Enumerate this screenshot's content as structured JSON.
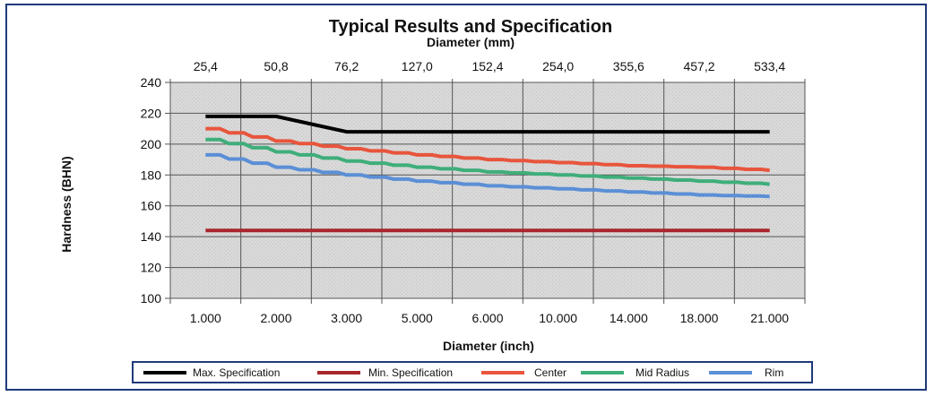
{
  "chart_data": {
    "type": "line",
    "title": "Typical Results and Specification",
    "top_axis_label": "Diameter (mm)",
    "xlabel": "Diameter (inch)",
    "ylabel": "Hardness (BHN)",
    "categories": [
      "1.000",
      "2.000",
      "3.000",
      "5.000",
      "6.000",
      "10.000",
      "14.000",
      "18.000",
      "21.000"
    ],
    "top_categories": [
      "25,4",
      "50,8",
      "76,2",
      "127,0",
      "152,4",
      "254,0",
      "355,6",
      "457,2",
      "533,4"
    ],
    "ylim": [
      100,
      240
    ],
    "yticks": [
      100,
      120,
      140,
      160,
      180,
      200,
      220,
      240
    ],
    "grid": true,
    "legend_position": "bottom",
    "series": [
      {
        "name": "Max. Specification",
        "color": "#000000",
        "values": [
          218,
          218,
          208,
          208,
          208,
          208,
          208,
          208,
          208
        ]
      },
      {
        "name": "Min. Specification",
        "color": "#a8262b",
        "values": [
          144,
          144,
          144,
          144,
          144,
          144,
          144,
          144,
          144
        ]
      },
      {
        "name": "Center",
        "color": "#e8553c",
        "values": [
          210,
          202,
          197,
          193,
          190,
          188,
          186,
          185,
          183
        ]
      },
      {
        "name": "Mid Radius",
        "color": "#3fae7a",
        "values": [
          203,
          195,
          189,
          185,
          182,
          180,
          178,
          176,
          174
        ]
      },
      {
        "name": "Rim",
        "color": "#5b8fd6",
        "values": [
          193,
          185,
          180,
          176,
          173,
          171,
          169,
          167,
          166
        ]
      }
    ]
  }
}
